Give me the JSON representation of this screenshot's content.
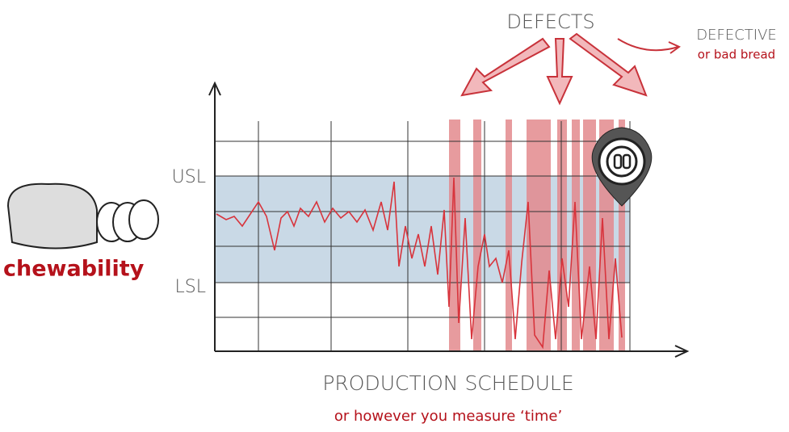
{
  "labels": {
    "defects": "DEFECTS",
    "defective": "DEFECTIVE",
    "bad_bread": "or bad bread",
    "usl": "USL",
    "lsl": "LSL",
    "quality": "chewability",
    "x_axis": "PRODUCTION SCHEDULE",
    "x_axis_note": "or however you measure ‘time’"
  }
}
